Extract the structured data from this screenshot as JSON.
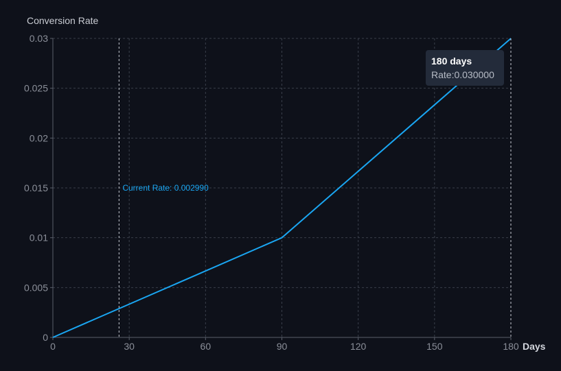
{
  "chart_data": {
    "type": "line",
    "ylabel": "Conversion Rate",
    "xlabel": "Days",
    "x": [
      0,
      90,
      180
    ],
    "series": [
      {
        "values": [
          0,
          0.01,
          0.03
        ]
      }
    ],
    "xlim": [
      0,
      180
    ],
    "ylim": [
      0,
      0.03
    ],
    "x_ticks": [
      0,
      30,
      60,
      90,
      120,
      150,
      180
    ],
    "x_tick_labels": [
      "0",
      "30",
      "60",
      "90",
      "120",
      "150",
      "180"
    ],
    "y_ticks": [
      0,
      0.005,
      0.01,
      0.015,
      0.02,
      0.025,
      0.03
    ],
    "y_tick_labels": [
      "0",
      "0.005",
      "0.01",
      "0.015",
      "0.02",
      "0.025",
      "0.03"
    ],
    "grid": true,
    "current_marker": {
      "x": 26,
      "label": "Current Rate: 0.002990"
    },
    "highlight_range": [
      90,
      180
    ],
    "tooltip": {
      "x": 180,
      "title": "180 days",
      "value": "Rate:0.030000"
    }
  },
  "colors": {
    "line": "#1aa6f2",
    "label": "#1aa6f2",
    "area_top": "#243a5e"
  }
}
